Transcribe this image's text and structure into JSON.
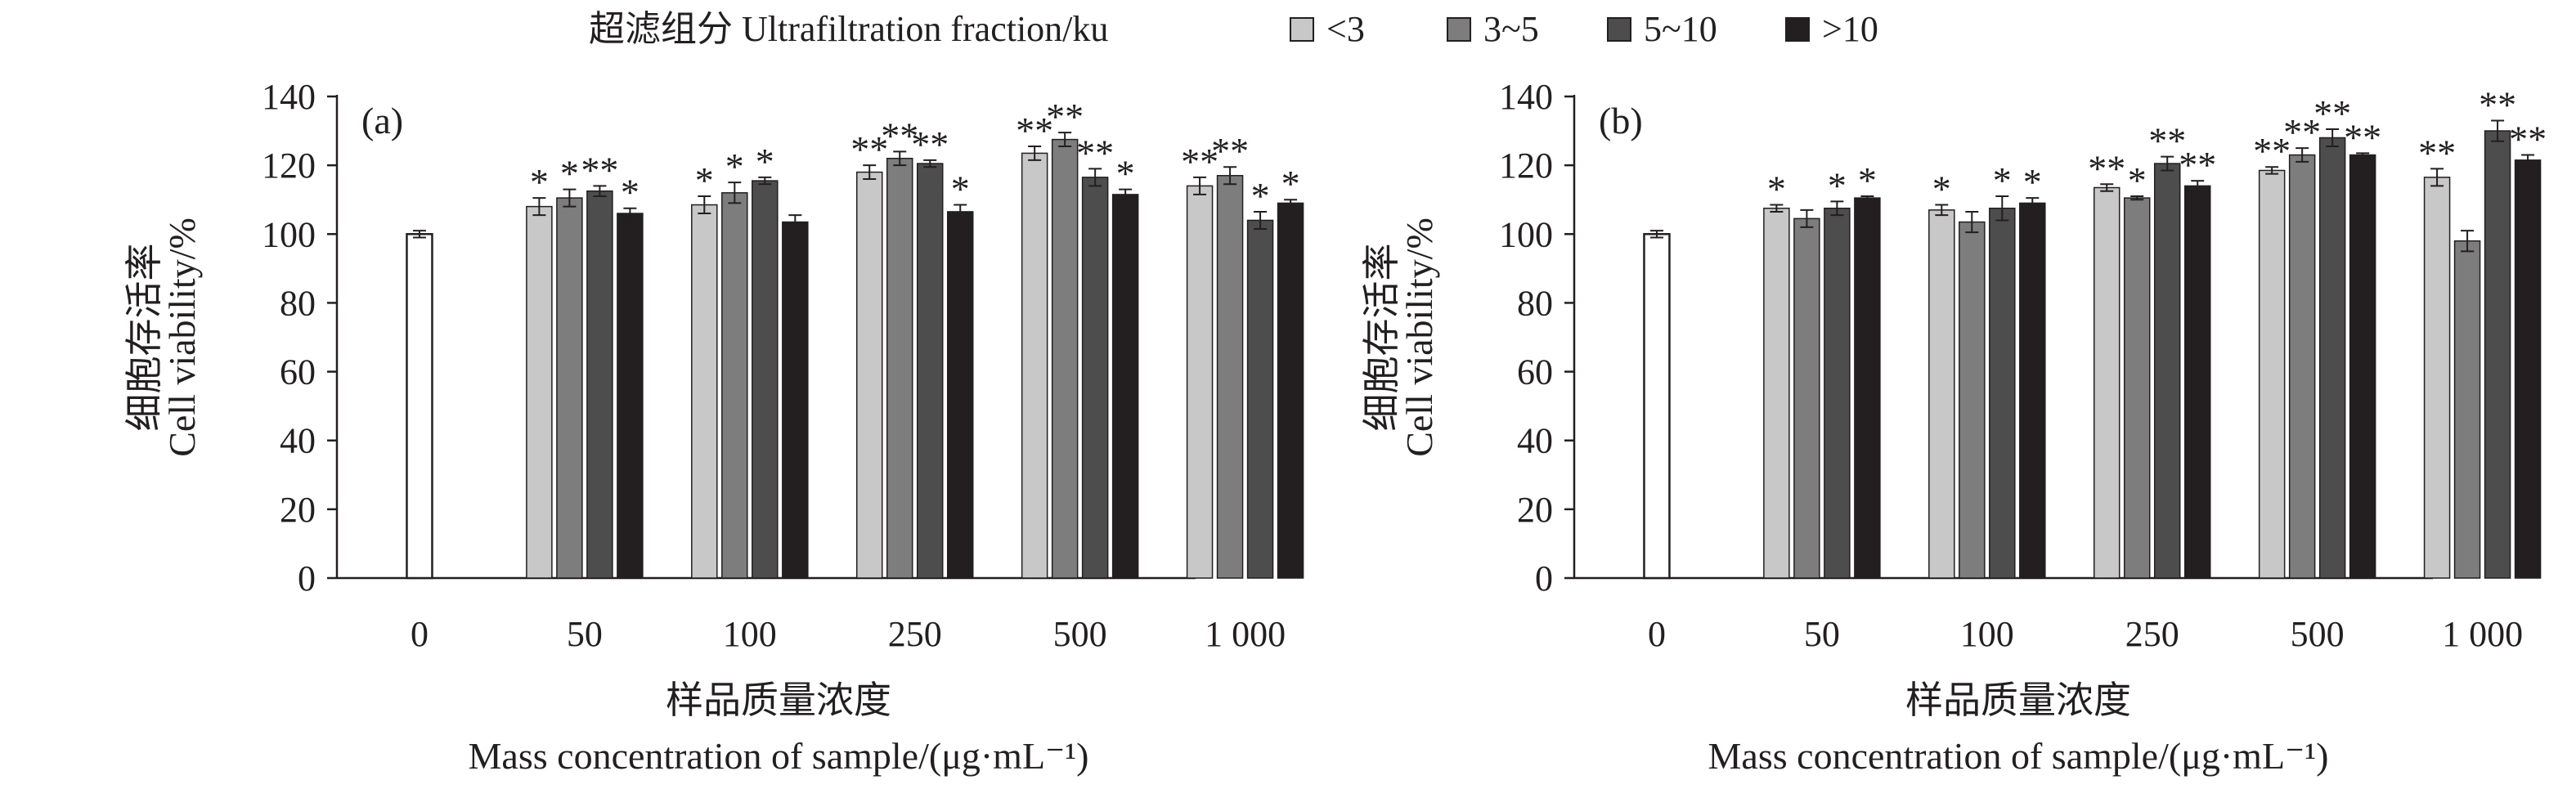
{
  "legend": {
    "title": "超滤组分 Ultrafiltration fraction/ku",
    "entries": [
      {
        "label": "<3",
        "color": "#c8c8c8"
      },
      {
        "label": "3~5",
        "color": "#7d7d7d"
      },
      {
        "label": "5~10",
        "color": "#4d4d4d"
      },
      {
        "label": ">10",
        "color": "#231f20"
      }
    ]
  },
  "chart_data": [
    {
      "type": "bar",
      "panel_label": "(a)",
      "ylabel_cn": "细胞存活率",
      "ylabel_en": "Cell viability/%",
      "xlabel_cn": "样品质量浓度",
      "xlabel_en": "Mass concentration of sample/(μg·mL⁻¹)",
      "ylim": [
        0,
        140
      ],
      "yticks": [
        0,
        20,
        40,
        60,
        80,
        100,
        120,
        140
      ],
      "control": {
        "category": "0",
        "value": 100,
        "error": 1,
        "color": "#ffffff"
      },
      "categories": [
        "50",
        "100",
        "250",
        "500",
        "1 000"
      ],
      "series": [
        {
          "name": "<3",
          "values": [
            108,
            108.5,
            118,
            123.5,
            114
          ],
          "errors": [
            2.5,
            2.5,
            2,
            2,
            2.5
          ],
          "sig": [
            "*",
            "*",
            "**",
            "**",
            "**"
          ]
        },
        {
          "name": "3~5",
          "values": [
            110.5,
            112,
            122,
            127.5,
            117
          ],
          "errors": [
            2.5,
            3,
            2,
            2,
            2.5
          ],
          "sig": [
            "*",
            "*",
            "**",
            "**",
            "**"
          ]
        },
        {
          "name": "5~10",
          "values": [
            112.5,
            115.5,
            120.5,
            116.5,
            104
          ],
          "errors": [
            1.5,
            1,
            1,
            2.5,
            2.5
          ],
          "sig": [
            "**",
            "*",
            "**",
            "**",
            "*"
          ]
        },
        {
          "name": ">10",
          "values": [
            106,
            103.5,
            106.5,
            111.5,
            109
          ],
          "errors": [
            1.5,
            2,
            2,
            1.5,
            1
          ],
          "sig": [
            "*",
            "",
            "*",
            "*",
            "*"
          ]
        }
      ]
    },
    {
      "type": "bar",
      "panel_label": "(b)",
      "ylabel_cn": "细胞存活率",
      "ylabel_en": "Cell viability/%",
      "xlabel_cn": "样品质量浓度",
      "xlabel_en": "Mass concentration of sample/(μg·mL⁻¹)",
      "ylim": [
        0,
        140
      ],
      "yticks": [
        0,
        20,
        40,
        60,
        80,
        100,
        120,
        140
      ],
      "control": {
        "category": "0",
        "value": 100,
        "error": 1,
        "color": "#ffffff"
      },
      "categories": [
        "50",
        "100",
        "250",
        "500",
        "1 000"
      ],
      "series": [
        {
          "name": "<3",
          "values": [
            107.5,
            107,
            113.5,
            118.5,
            116.5
          ],
          "errors": [
            1,
            1.5,
            1,
            1,
            2.5
          ],
          "sig": [
            "*",
            "*",
            "**",
            "**",
            "**"
          ]
        },
        {
          "name": "3~5",
          "values": [
            104.5,
            103.5,
            110.5,
            123,
            98
          ],
          "errors": [
            2.5,
            3,
            0.5,
            2,
            3
          ],
          "sig": [
            "",
            "",
            "*",
            "**",
            ""
          ]
        },
        {
          "name": "5~10",
          "values": [
            107.5,
            107.5,
            120.5,
            128,
            130
          ],
          "errors": [
            2,
            3.5,
            2,
            2.5,
            3
          ],
          "sig": [
            "*",
            "*",
            "**",
            "**",
            "**"
          ]
        },
        {
          "name": ">10",
          "values": [
            110.5,
            109,
            114,
            123,
            121.5
          ],
          "errors": [
            0.5,
            1.5,
            1.5,
            0.5,
            1.5
          ],
          "sig": [
            "*",
            "*",
            "**",
            "**",
            "**"
          ]
        }
      ]
    }
  ]
}
